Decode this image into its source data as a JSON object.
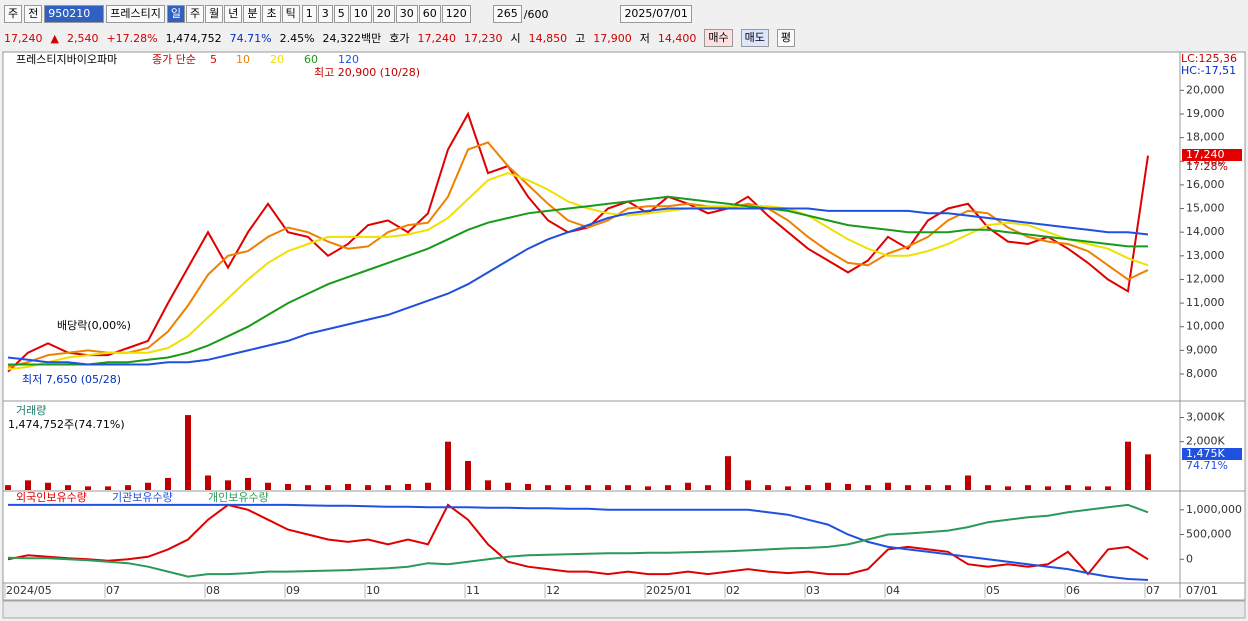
{
  "toolbar": {
    "market": "주",
    "prev": "전",
    "code": "950210",
    "name": "프레스티지",
    "periods": [
      "일",
      "주",
      "월",
      "년",
      "분",
      "초",
      "틱"
    ],
    "intervals": [
      "1",
      "3",
      "5",
      "10",
      "20",
      "30",
      "60",
      "120"
    ],
    "count": "265",
    "max": "/600",
    "date": "2025/07/01"
  },
  "quote": {
    "price": "17,240",
    "arrow": "▲",
    "change": "2,540",
    "change_pct": "+17.28%",
    "volume": "1,474,752",
    "volume_ratio": "74.71%",
    "turnover": "2.45%",
    "amount": "24,322백만",
    "bid_ask_label": "호가",
    "ask": "17,240",
    "bid": "17,230",
    "open_label": "시",
    "open": "14,850",
    "high_label": "고",
    "high": "17,900",
    "low_label": "저",
    "low": "14,400",
    "buy": "매수",
    "sell": "매도",
    "avg": "평"
  },
  "x_axis": {
    "end_label": "07/01"
  },
  "chart_data": [
    {
      "type": "line",
      "title": "프레스티지바이오파마",
      "legend_label": "종가 단순",
      "series": [
        {
          "name": "5",
          "color": "#e00000",
          "values": [
            8100,
            8900,
            9300,
            8900,
            8800,
            8800,
            9100,
            9400,
            11000,
            12500,
            14000,
            12500,
            14000,
            15200,
            14000,
            13800,
            13000,
            13500,
            14300,
            14500,
            14000,
            14800,
            17500,
            19000,
            16500,
            16800,
            15500,
            14500,
            14000,
            14200,
            15000,
            15300,
            14800,
            15500,
            15200,
            14800,
            15000,
            15500,
            14700,
            14000,
            13300,
            12800,
            12300,
            12800,
            13800,
            13300,
            14500,
            15000,
            15200,
            14200,
            13600,
            13500,
            13800,
            13300,
            12700,
            12000,
            11500,
            17240
          ]
        },
        {
          "name": "10",
          "color": "#f08000",
          "values": [
            8300,
            8500,
            8800,
            8900,
            9000,
            8900,
            8900,
            9100,
            9800,
            10900,
            12200,
            13000,
            13200,
            13800,
            14200,
            14000,
            13600,
            13300,
            13400,
            14000,
            14300,
            14400,
            15500,
            17500,
            17800,
            16800,
            16000,
            15200,
            14500,
            14200,
            14500,
            15000,
            15100,
            15100,
            15200,
            15100,
            15000,
            15200,
            15000,
            14500,
            13800,
            13200,
            12700,
            12600,
            13100,
            13400,
            13800,
            14500,
            14900,
            14800,
            14200,
            13800,
            13600,
            13500,
            13200,
            12600,
            12000,
            12400
          ]
        },
        {
          "name": "20",
          "color": "#f0e000",
          "values": [
            8200,
            8300,
            8500,
            8700,
            8800,
            8900,
            8900,
            8900,
            9100,
            9600,
            10400,
            11200,
            12000,
            12700,
            13200,
            13500,
            13800,
            13800,
            13800,
            13800,
            13900,
            14100,
            14600,
            15400,
            16200,
            16500,
            16200,
            15800,
            15300,
            15000,
            14800,
            14700,
            14800,
            14900,
            15000,
            15100,
            15100,
            15100,
            15100,
            15000,
            14700,
            14200,
            13700,
            13300,
            13000,
            13000,
            13200,
            13500,
            13900,
            14300,
            14400,
            14300,
            14000,
            13700,
            13500,
            13300,
            12900,
            12600
          ]
        },
        {
          "name": "60",
          "color": "#1a9a1a",
          "values": [
            8400,
            8400,
            8400,
            8400,
            8400,
            8500,
            8500,
            8600,
            8700,
            8900,
            9200,
            9600,
            10000,
            10500,
            11000,
            11400,
            11800,
            12100,
            12400,
            12700,
            13000,
            13300,
            13700,
            14100,
            14400,
            14600,
            14800,
            14900,
            15000,
            15100,
            15200,
            15300,
            15400,
            15500,
            15400,
            15300,
            15200,
            15100,
            15000,
            14900,
            14700,
            14500,
            14300,
            14200,
            14100,
            14000,
            14000,
            14000,
            14100,
            14100,
            14000,
            13900,
            13800,
            13700,
            13600,
            13500,
            13400,
            13400
          ]
        },
        {
          "name": "120",
          "color": "#2050e0",
          "values": [
            8700,
            8600,
            8500,
            8500,
            8400,
            8400,
            8400,
            8400,
            8500,
            8500,
            8600,
            8800,
            9000,
            9200,
            9400,
            9700,
            9900,
            10100,
            10300,
            10500,
            10800,
            11100,
            11400,
            11800,
            12300,
            12800,
            13300,
            13700,
            14000,
            14300,
            14600,
            14800,
            14900,
            15000,
            15000,
            15000,
            15000,
            15000,
            15000,
            15000,
            15000,
            14900,
            14900,
            14900,
            14900,
            14900,
            14800,
            14800,
            14700,
            14600,
            14500,
            14400,
            14300,
            14200,
            14100,
            14000,
            14000,
            13900
          ]
        }
      ],
      "ylim": [
        6900,
        21200
      ],
      "yticks": [
        {
          "value": 8000,
          "label": "8,000"
        },
        {
          "value": 9000,
          "label": "9,000"
        },
        {
          "value": 10000,
          "label": "10,000"
        },
        {
          "value": 11000,
          "label": "11,000"
        },
        {
          "value": 12000,
          "label": "12,000"
        },
        {
          "value": 13000,
          "label": "13,000"
        },
        {
          "value": 14000,
          "label": "14,000"
        },
        {
          "value": 15000,
          "label": "15,000"
        },
        {
          "value": 16000,
          "label": "16,000"
        },
        {
          "value": 17000,
          "label": "17,000"
        },
        {
          "value": 18000,
          "label": "18,000"
        },
        {
          "value": 19000,
          "label": "19,000"
        },
        {
          "value": 20000,
          "label": "20,000"
        }
      ],
      "annotations": {
        "high": "최고 20,900 (10/28)",
        "low": "최저 7,650 (05/28)",
        "dividend": "배당락(0,00%)",
        "lc": "LC:125,36",
        "hc": "HC:-17,51",
        "last_price": "17,240",
        "last_pct": "17.28%"
      }
    },
    {
      "type": "bar",
      "title": "거래량",
      "current": "1,474,752주(74.71%)",
      "color": "#c00000",
      "values": [
        200000,
        400000,
        300000,
        200000,
        150000,
        150000,
        200000,
        300000,
        500000,
        3100000,
        600000,
        400000,
        500000,
        300000,
        250000,
        200000,
        200000,
        250000,
        200000,
        200000,
        250000,
        300000,
        2000000,
        1200000,
        400000,
        300000,
        250000,
        200000,
        200000,
        200000,
        200000,
        200000,
        150000,
        200000,
        300000,
        200000,
        1400000,
        400000,
        200000,
        150000,
        200000,
        300000,
        250000,
        200000,
        300000,
        200000,
        200000,
        200000,
        600000,
        200000,
        150000,
        200000,
        150000,
        200000,
        150000,
        150000,
        2000000,
        1474752
      ],
      "ylim": [
        0,
        3600000
      ],
      "yticks": [
        {
          "value": 2000000,
          "label": "2,000K"
        },
        {
          "value": 3000000,
          "label": "3,000K"
        }
      ],
      "last_label": "1,475K",
      "last_pct": "74.71%"
    },
    {
      "type": "line",
      "categories": [
        "2024/05",
        null,
        null,
        null,
        null,
        "07",
        null,
        null,
        null,
        null,
        "08",
        null,
        null,
        null,
        "09",
        null,
        null,
        null,
        "10",
        null,
        null,
        null,
        null,
        "11",
        null,
        null,
        null,
        "12",
        null,
        null,
        null,
        null,
        "2025/01",
        null,
        null,
        null,
        "02",
        null,
        null,
        null,
        "03",
        null,
        null,
        null,
        "04",
        null,
        null,
        null,
        null,
        "05",
        null,
        null,
        null,
        "06",
        null,
        null,
        null,
        "07"
      ],
      "series": [
        {
          "name": "외국인보유수량",
          "color": "#e00000",
          "values": [
            0,
            80000,
            50000,
            20000,
            0,
            -30000,
            0,
            50000,
            200000,
            400000,
            800000,
            1100000,
            1000000,
            800000,
            600000,
            500000,
            400000,
            350000,
            400000,
            300000,
            400000,
            300000,
            1100000,
            800000,
            300000,
            -50000,
            -150000,
            -200000,
            -250000,
            -250000,
            -300000,
            -250000,
            -300000,
            -300000,
            -250000,
            -300000,
            -250000,
            -200000,
            -250000,
            -280000,
            -250000,
            -300000,
            -300000,
            -200000,
            200000,
            250000,
            200000,
            150000,
            -100000,
            -150000,
            -100000,
            -150000,
            -100000,
            150000,
            -300000,
            200000,
            250000,
            0
          ]
        },
        {
          "name": "기관보유수량",
          "color": "#2050e0",
          "values": [
            1100000,
            1100000,
            1100000,
            1100000,
            1100000,
            1100000,
            1100000,
            1100000,
            1100000,
            1100000,
            1100000,
            1100000,
            1100000,
            1100000,
            1100000,
            1090000,
            1080000,
            1080000,
            1070000,
            1060000,
            1060000,
            1050000,
            1050000,
            1050000,
            1040000,
            1040000,
            1030000,
            1030000,
            1020000,
            1020000,
            1000000,
            1000000,
            1000000,
            1000000,
            1000000,
            1000000,
            1000000,
            1000000,
            950000,
            900000,
            800000,
            700000,
            500000,
            350000,
            250000,
            200000,
            150000,
            100000,
            50000,
            0,
            -50000,
            -100000,
            -150000,
            -200000,
            -280000,
            -350000,
            -400000,
            -420000
          ]
        },
        {
          "name": "개인보유수량",
          "color": "#2a9a5a",
          "values": [
            30000,
            20000,
            20000,
            0,
            -20000,
            -50000,
            -80000,
            -150000,
            -250000,
            -350000,
            -300000,
            -300000,
            -280000,
            -250000,
            -250000,
            -240000,
            -230000,
            -220000,
            -200000,
            -180000,
            -150000,
            -80000,
            -100000,
            -50000,
            0,
            50000,
            80000,
            90000,
            100000,
            110000,
            120000,
            120000,
            130000,
            130000,
            140000,
            150000,
            160000,
            180000,
            200000,
            220000,
            230000,
            250000,
            300000,
            400000,
            500000,
            520000,
            550000,
            580000,
            650000,
            750000,
            800000,
            850000,
            880000,
            950000,
            1000000,
            1050000,
            1100000,
            950000
          ]
        }
      ],
      "ylim": [
        -460000,
        1360000
      ],
      "yticks": [
        0,
        {
          "value": 500000,
          "label": "500,000"
        },
        {
          "value": 1000000,
          "label": "1,000,000"
        }
      ]
    }
  ]
}
